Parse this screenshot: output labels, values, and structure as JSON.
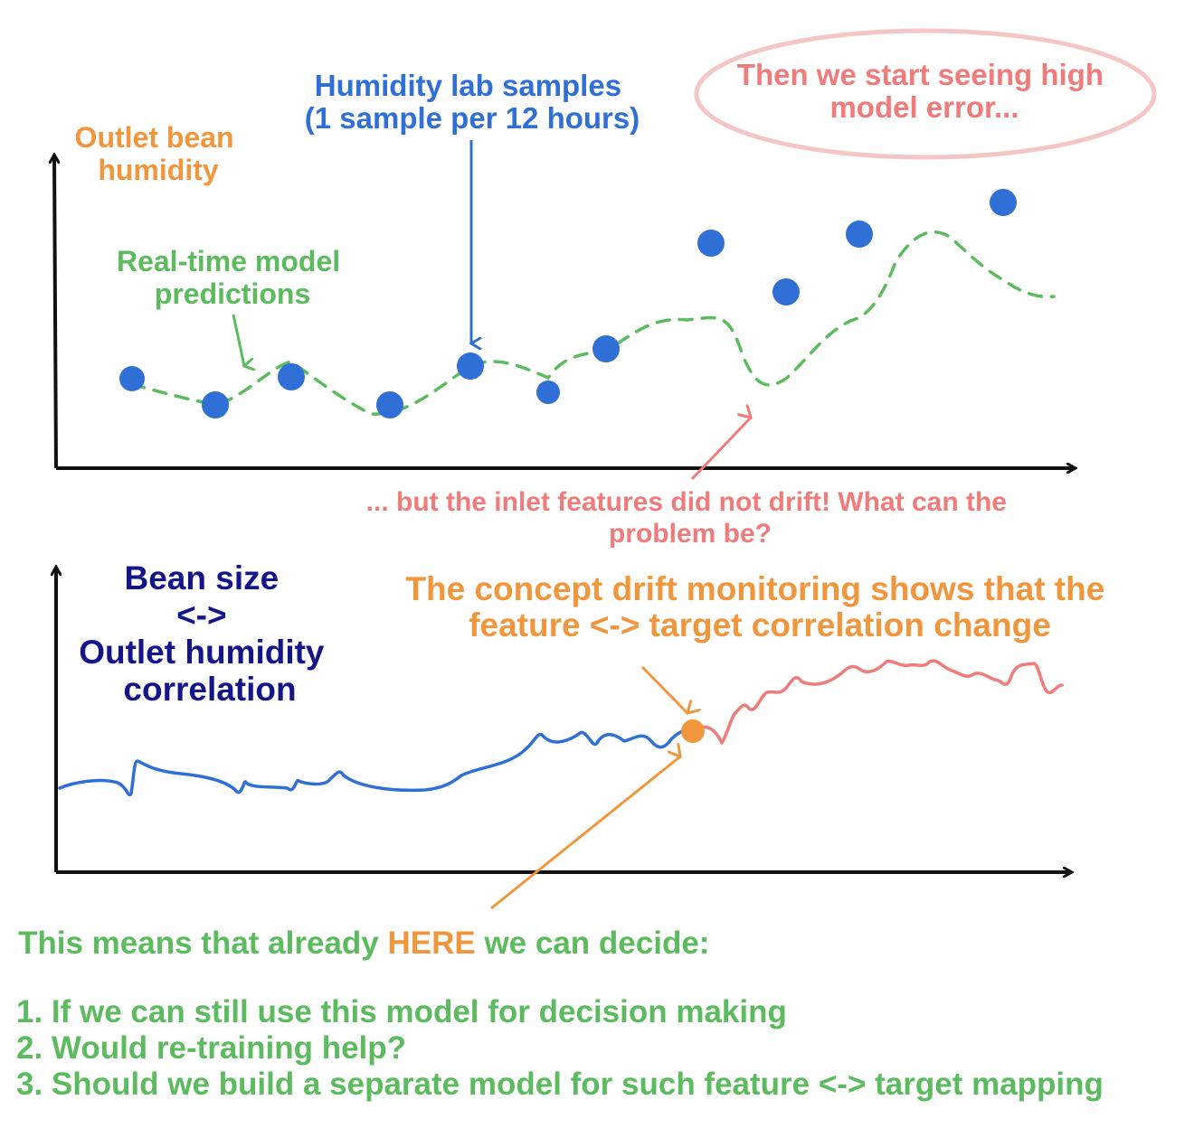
{
  "colors": {
    "axis": "#111111",
    "orange": "#f0963c",
    "blue": "#2f6fd6",
    "green": "#5cbb5e",
    "salmon": "#ef7b7b",
    "ellipse": "#f5c6c6",
    "navy": "#15158a"
  },
  "top_panel": {
    "y_label": [
      "Outlet bean",
      "humidity"
    ],
    "lab_label": [
      "Humidity lab samples",
      "(1 sample per 12 hours)"
    ],
    "pred_label": [
      "Real-time model",
      "predictions"
    ],
    "error_label": [
      "Then we start seeing high",
      "model error..."
    ],
    "drift_question": [
      "... but the inlet features did not drift! What can the",
      "problem be?"
    ]
  },
  "bottom_panel": {
    "y_label": [
      "Bean size",
      "<->",
      "Outlet humidity",
      "correlation"
    ],
    "concept_label": [
      "The concept drift monitoring shows that the",
      "feature <-> target correlation change"
    ]
  },
  "conclusion": {
    "prefix": "This means that already ",
    "highlight": "HERE",
    "suffix": " we can decide:",
    "items": [
      "1. If we can still use this model for decision making",
      "2. Would re-training help?",
      "3. Should we build a separate model for such feature <-> target mapping"
    ]
  }
}
